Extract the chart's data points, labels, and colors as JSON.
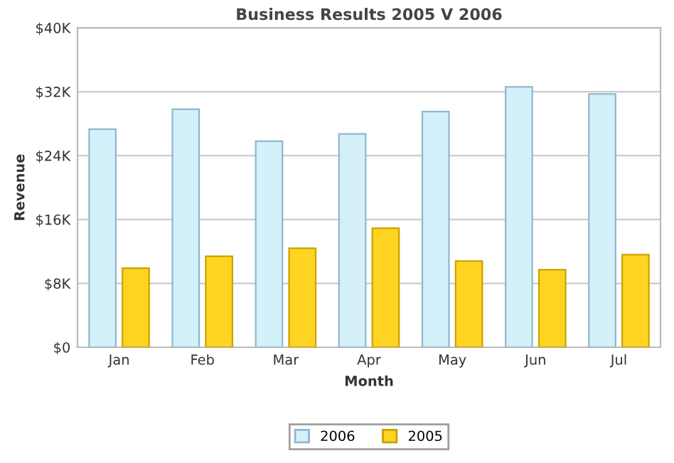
{
  "chart_data": {
    "type": "bar",
    "title": "Business Results 2005 V 2006",
    "xlabel": "Month",
    "ylabel": "Revenue",
    "categories": [
      "Jan",
      "Feb",
      "Mar",
      "Apr",
      "May",
      "Jun",
      "Jul"
    ],
    "series": [
      {
        "name": "2006",
        "color": "#d4f0fb",
        "values": [
          27.3,
          29.8,
          25.8,
          26.7,
          29.5,
          32.6,
          31.7
        ]
      },
      {
        "name": "2005",
        "color": "#ffd420",
        "values": [
          9.9,
          11.4,
          12.4,
          14.9,
          10.8,
          9.7,
          11.6
        ]
      }
    ],
    "ylim": [
      0,
      40
    ],
    "yticks": [
      {
        "value": 0,
        "label": "$0"
      },
      {
        "value": 8,
        "label": "$8K"
      },
      {
        "value": 16,
        "label": "$16K"
      },
      {
        "value": 24,
        "label": "$24K"
      },
      {
        "value": 32,
        "label": "$32K"
      },
      {
        "value": 40,
        "label": "$40K"
      }
    ],
    "grid": "y",
    "legend": "bottom"
  }
}
